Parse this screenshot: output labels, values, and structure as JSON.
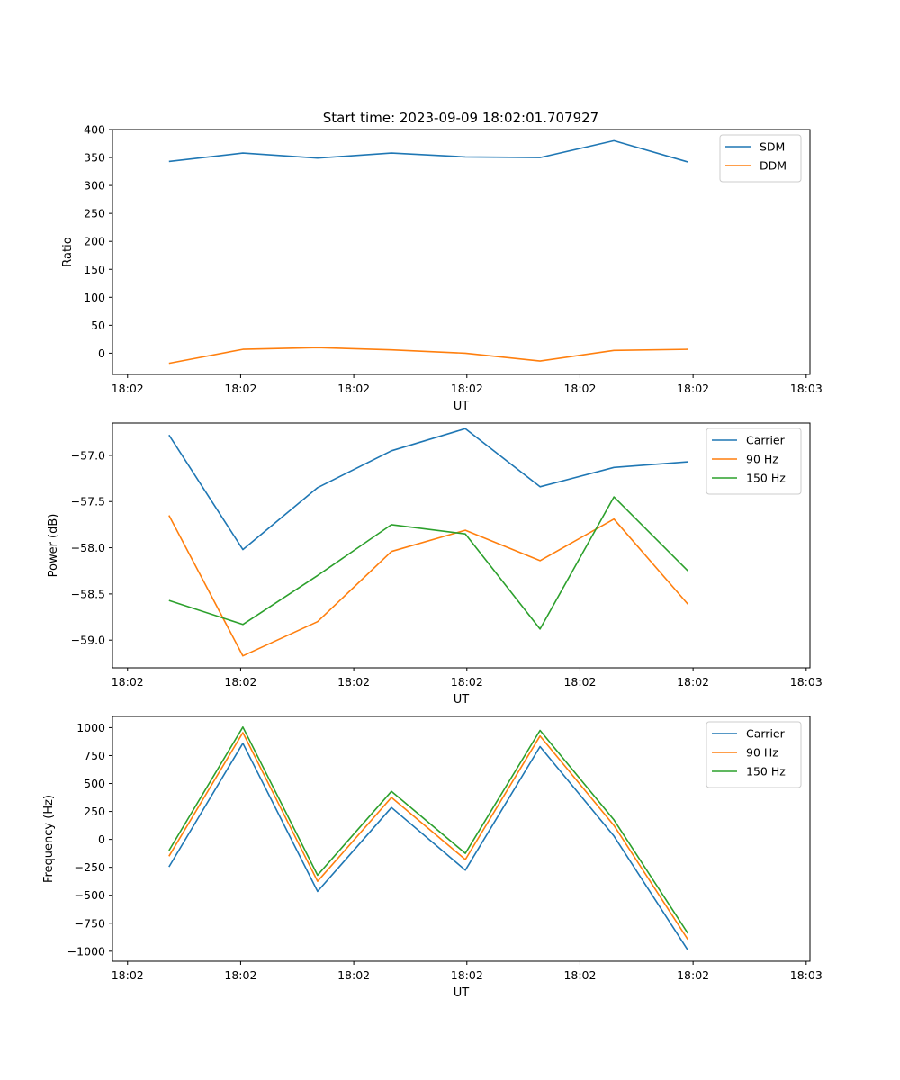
{
  "figure_title": "Start time: 2023-09-09 18:02:01.707927",
  "chart_data": [
    {
      "type": "line",
      "ylabel": "Ratio",
      "xlabel": "UT",
      "xlim": [
        0,
        9.25
      ],
      "ylim": [
        -38,
        400
      ],
      "x_tick_labels": [
        "18:02",
        "18:02",
        "18:02",
        "18:02",
        "18:02",
        "18:02",
        "18:03"
      ],
      "y_ticks": [
        0,
        50,
        100,
        150,
        200,
        250,
        300,
        350,
        400
      ],
      "x": [
        0.75,
        1.73,
        2.72,
        3.7,
        4.68,
        5.67,
        6.65,
        7.63
      ],
      "series": [
        {
          "name": "SDM",
          "color": "#1f77b4",
          "values": [
            343,
            358,
            349,
            358,
            351,
            350,
            380,
            342
          ]
        },
        {
          "name": "DDM",
          "color": "#ff7f0e",
          "values": [
            -18,
            7,
            10,
            6,
            0,
            -14,
            5,
            7
          ]
        }
      ]
    },
    {
      "type": "line",
      "ylabel": "Power (dB)",
      "xlabel": "UT",
      "xlim": [
        0,
        9.25
      ],
      "ylim": [
        -59.3,
        -56.65
      ],
      "x_tick_labels": [
        "18:02",
        "18:02",
        "18:02",
        "18:02",
        "18:02",
        "18:02",
        "18:03"
      ],
      "y_ticks": [
        -59.0,
        -58.5,
        -58.0,
        -57.5,
        -57.0
      ],
      "y_tick_labels": [
        "−59.0",
        "−58.5",
        "−58.0",
        "−57.5",
        "−57.0"
      ],
      "x": [
        0.75,
        1.73,
        2.72,
        3.7,
        4.68,
        5.67,
        6.65,
        7.63
      ],
      "series": [
        {
          "name": "Carrier",
          "color": "#1f77b4",
          "values": [
            -56.78,
            -58.02,
            -57.35,
            -56.95,
            -56.71,
            -57.34,
            -57.13,
            -57.07
          ]
        },
        {
          "name": "90 Hz",
          "color": "#ff7f0e",
          "values": [
            -57.65,
            -59.17,
            -58.8,
            -58.04,
            -57.81,
            -58.14,
            -57.69,
            -58.61
          ]
        },
        {
          "name": "150 Hz",
          "color": "#2ca02c",
          "values": [
            -58.57,
            -58.83,
            -58.3,
            -57.75,
            -57.85,
            -58.88,
            -57.45,
            -58.25
          ]
        }
      ]
    },
    {
      "type": "line",
      "ylabel": "Frequency (Hz)",
      "xlabel": "UT",
      "xlim": [
        0,
        9.25
      ],
      "ylim": [
        -1090,
        1100
      ],
      "x_tick_labels": [
        "18:02",
        "18:02",
        "18:02",
        "18:02",
        "18:02",
        "18:02",
        "18:03"
      ],
      "y_ticks": [
        -1000,
        -750,
        -500,
        -250,
        0,
        250,
        500,
        750,
        1000
      ],
      "y_tick_labels": [
        "−1000",
        "−750",
        "−500",
        "−250",
        "0",
        "250",
        "500",
        "750",
        "1000"
      ],
      "x": [
        0.75,
        1.73,
        2.72,
        3.7,
        4.68,
        5.67,
        6.65,
        7.63
      ],
      "series": [
        {
          "name": "Carrier",
          "color": "#1f77b4",
          "values": [
            -245,
            860,
            -465,
            285,
            -275,
            830,
            30,
            -990
          ]
        },
        {
          "name": "90 Hz",
          "color": "#ff7f0e",
          "values": [
            -150,
            955,
            -375,
            375,
            -180,
            925,
            125,
            -895
          ]
        },
        {
          "name": "150 Hz",
          "color": "#2ca02c",
          "values": [
            -100,
            1005,
            -320,
            430,
            -125,
            975,
            175,
            -840
          ]
        }
      ]
    }
  ]
}
